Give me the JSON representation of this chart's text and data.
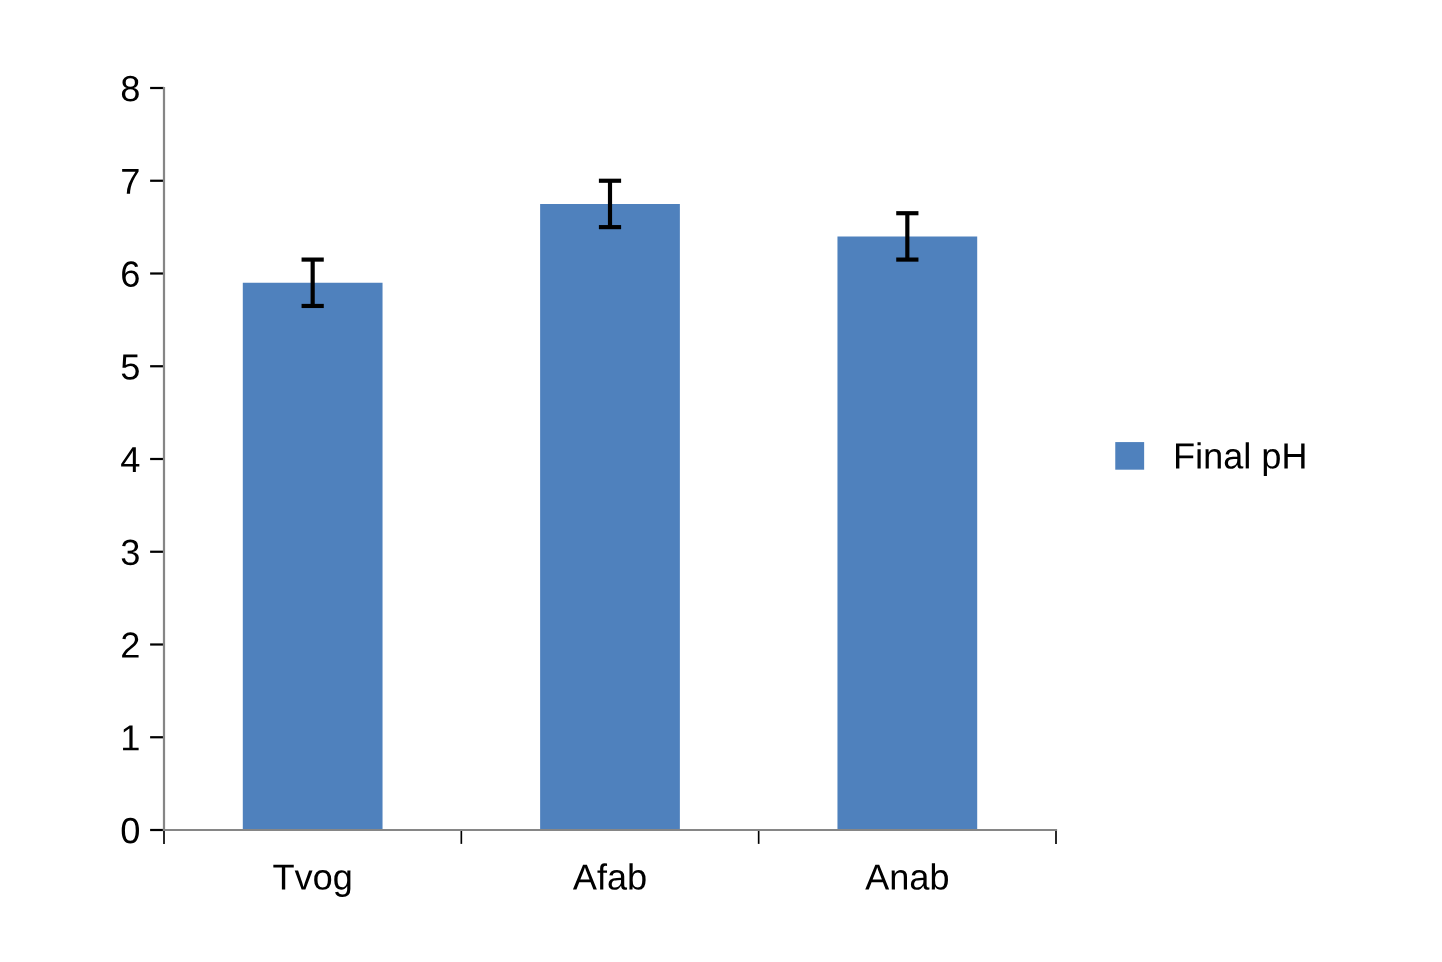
{
  "chart_data": {
    "type": "bar",
    "categories": [
      "Tvog",
      "Afab",
      "Anab"
    ],
    "series": [
      {
        "name": "Final pH",
        "color": "#4f81bd",
        "values": [
          5.9,
          6.75,
          6.4
        ],
        "errors": [
          0.25,
          0.25,
          0.25
        ]
      }
    ],
    "ylim": [
      0,
      8
    ],
    "yticks": [
      0,
      1,
      2,
      3,
      4,
      5,
      6,
      7,
      8
    ],
    "grid": false,
    "legend": "right"
  }
}
